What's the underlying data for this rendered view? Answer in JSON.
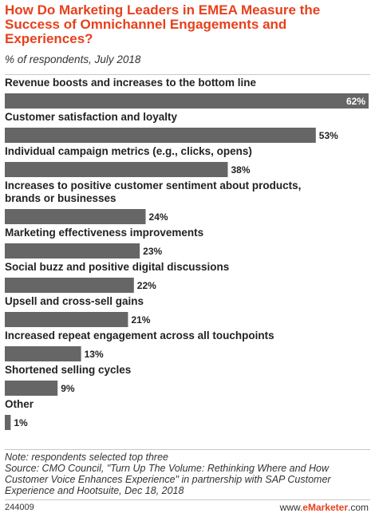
{
  "header": {
    "title": "How Do Marketing Leaders in EMEA Measure the Success of Omnichannel Engagements and Experiences?",
    "subtitle": "% of respondents, July 2018"
  },
  "chart_data": {
    "type": "bar",
    "orientation": "horizontal",
    "title": "How Do Marketing Leaders in EMEA Measure the Success of Omnichannel Engagements and Experiences?",
    "subtitle": "% of respondents, July 2018",
    "categories": [
      [
        "Revenue boosts and increases to the bottom line"
      ],
      [
        "Customer satisfaction and loyalty"
      ],
      [
        "Individual campaign metrics (e.g., clicks, opens)"
      ],
      [
        "Increases to positive customer sentiment about products,",
        "brands or businesses"
      ],
      [
        "Marketing effectiveness improvements"
      ],
      [
        "Social buzz and positive digital discussions"
      ],
      [
        "Upsell and cross-sell gains"
      ],
      [
        "Increased repeat engagement across all touchpoints"
      ],
      [
        "Shortened selling cycles"
      ],
      [
        "Other"
      ]
    ],
    "values": [
      62,
      53,
      38,
      24,
      23,
      22,
      21,
      13,
      9,
      1
    ],
    "value_labels": [
      "62%",
      "53%",
      "38%",
      "24%",
      "23%",
      "22%",
      "21%",
      "13%",
      "9%",
      "1%"
    ],
    "xlim": [
      0,
      62
    ],
    "grid": false,
    "bar_color": "#666666"
  },
  "footer": {
    "note": "Note: respondents selected top three",
    "source": "Source: CMO Council, \"Turn Up The Volume: Rethinking Where and How Customer Voice Enhances Experience\" in partnership with SAP Customer Experience and Hootsuite, Dec 18, 2018",
    "chart_id": "244009",
    "brand_prefix": "www.",
    "brand_name": "eMarketer",
    "brand_suffix": ".com"
  },
  "colors": {
    "title": "#e8401c",
    "bar": "#666666",
    "value_label_inside": "#ffffff",
    "value_label_outside": "#222222"
  }
}
